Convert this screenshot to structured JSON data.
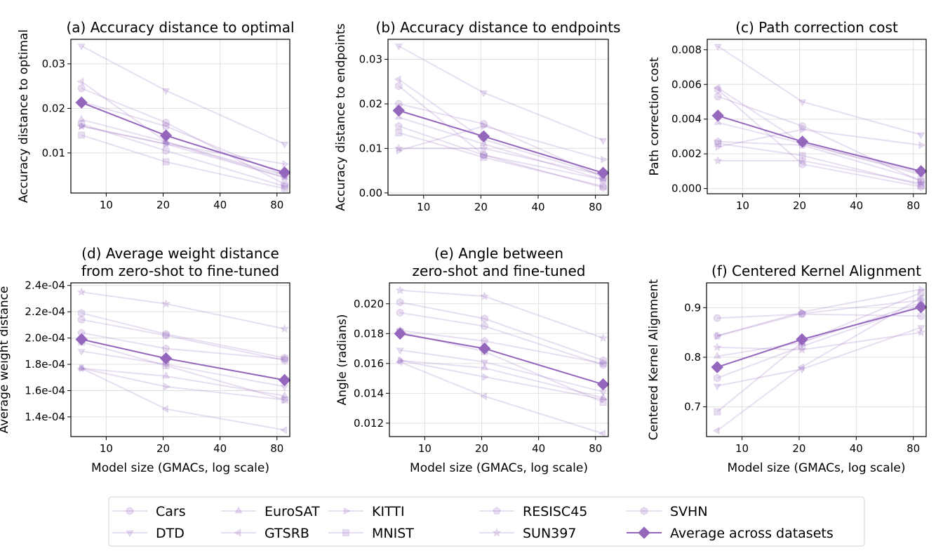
{
  "colors": {
    "series": "#9467bd",
    "grid": "#e0e0e0"
  },
  "legend": {
    "placement": "bottom-center",
    "entries": [
      {
        "name": "Cars",
        "marker": "circle"
      },
      {
        "name": "DTD",
        "marker": "triangle-down"
      },
      {
        "name": "EuroSAT",
        "marker": "triangle-up"
      },
      {
        "name": "GTSRB",
        "marker": "triangle-left"
      },
      {
        "name": "KITTI",
        "marker": "triangle-right"
      },
      {
        "name": "MNIST",
        "marker": "square"
      },
      {
        "name": "RESISC45",
        "marker": "pentagon"
      },
      {
        "name": "SUN397",
        "marker": "star"
      },
      {
        "name": "SVHN",
        "marker": "hexagon"
      },
      {
        "name": "Average across datasets",
        "marker": "diamond"
      }
    ]
  },
  "chart_data": [
    {
      "type": "line",
      "title": [
        "(a) Accuracy distance to optimal"
      ],
      "xlabel": "",
      "ylabel": "Accuracy distance to optimal",
      "xscale": "log",
      "x": [
        7.4,
        20.7,
        87.8
      ],
      "xlim": [
        6.5,
        93.5
      ],
      "xticks": [
        {
          "v": 10,
          "label": "10"
        },
        {
          "v": 20,
          "label": "20"
        },
        {
          "v": 40,
          "label": "40"
        },
        {
          "v": 80,
          "label": "80"
        }
      ],
      "ylim": [
        0.001,
        0.0355
      ],
      "grid": true,
      "yticks": [
        {
          "v": 0.01,
          "label": "0.01"
        },
        {
          "v": 0.02,
          "label": "0.02"
        },
        {
          "v": 0.03,
          "label": "0.03"
        }
      ],
      "series": [
        {
          "name": "Cars",
          "values": [
            0.0245,
            0.0168,
            0.003
          ]
        },
        {
          "name": "DTD",
          "values": [
            0.034,
            0.024,
            0.012
          ]
        },
        {
          "name": "EuroSAT",
          "values": [
            0.0175,
            0.0125,
            0.0045
          ]
        },
        {
          "name": "GTSRB",
          "values": [
            0.026,
            0.0125,
            0.005
          ]
        },
        {
          "name": "KITTI",
          "values": [
            0.016,
            0.012,
            0.0075
          ]
        },
        {
          "name": "MNIST",
          "values": [
            0.014,
            0.008,
            0.002
          ]
        },
        {
          "name": "RESISC45",
          "values": [
            0.0215,
            0.016,
            0.005
          ]
        },
        {
          "name": "SUN397",
          "values": [
            0.016,
            0.012,
            0.0045
          ]
        },
        {
          "name": "SVHN",
          "values": [
            0.0165,
            0.0105,
            0.0025
          ]
        },
        {
          "name": "Average across datasets",
          "values": [
            0.0213,
            0.0139,
            0.0056
          ]
        }
      ]
    },
    {
      "type": "line",
      "title": [
        "(b) Accuracy distance to endpoints"
      ],
      "xlabel": "",
      "ylabel": "Accuracy distance to endpoints",
      "xscale": "log",
      "x": [
        7.4,
        20.7,
        87.8
      ],
      "xlim": [
        6.5,
        93.5
      ],
      "xticks": [
        {
          "v": 10,
          "label": "10"
        },
        {
          "v": 20,
          "label": "20"
        },
        {
          "v": 40,
          "label": "40"
        },
        {
          "v": 80,
          "label": "80"
        }
      ],
      "ylim": [
        -0.0005,
        0.0345
      ],
      "grid": true,
      "yticks": [
        {
          "v": 0,
          "label": "0.00"
        },
        {
          "v": 0.01,
          "label": "0.01"
        },
        {
          "v": 0.02,
          "label": "0.02"
        },
        {
          "v": 0.03,
          "label": "0.03"
        }
      ],
      "series": [
        {
          "name": "Cars",
          "values": [
            0.02,
            0.0155,
            0.0035
          ]
        },
        {
          "name": "DTD",
          "values": [
            0.033,
            0.0225,
            0.0118
          ]
        },
        {
          "name": "EuroSAT",
          "values": [
            0.017,
            0.011,
            0.003
          ]
        },
        {
          "name": "GTSRB",
          "values": [
            0.0255,
            0.012,
            0.004
          ]
        },
        {
          "name": "KITTI",
          "values": [
            0.0095,
            0.015,
            0.0075
          ]
        },
        {
          "name": "MNIST",
          "values": [
            0.0135,
            0.008,
            0.0015
          ]
        },
        {
          "name": "RESISC45",
          "values": [
            0.015,
            0.0085,
            0.003
          ]
        },
        {
          "name": "SUN397",
          "values": [
            0.01,
            0.01,
            0.004
          ]
        },
        {
          "name": "SVHN",
          "values": [
            0.024,
            0.0085,
            0.0012
          ]
        },
        {
          "name": "Average across datasets",
          "values": [
            0.0185,
            0.0127,
            0.0045
          ]
        }
      ]
    },
    {
      "type": "line",
      "title": [
        "(c) Path correction cost"
      ],
      "xlabel": "",
      "ylabel": "Path correction cost",
      "xscale": "log",
      "x": [
        7.4,
        20.7,
        87.8
      ],
      "xlim": [
        6.5,
        93.5
      ],
      "xticks": [
        {
          "v": 10,
          "label": "10"
        },
        {
          "v": 20,
          "label": "20"
        },
        {
          "v": 40,
          "label": "40"
        },
        {
          "v": 80,
          "label": "80"
        }
      ],
      "ylim": [
        -0.0003,
        0.0086
      ],
      "grid": true,
      "yticks": [
        {
          "v": 0,
          "label": "0.000"
        },
        {
          "v": 0.002,
          "label": "0.002"
        },
        {
          "v": 0.004,
          "label": "0.004"
        },
        {
          "v": 0.006,
          "label": "0.006"
        },
        {
          "v": 0.008,
          "label": "0.008"
        }
      ],
      "series": [
        {
          "name": "Cars",
          "values": [
            0.0053,
            0.0036,
            0.0004
          ]
        },
        {
          "name": "DTD",
          "values": [
            0.0082,
            0.005,
            0.0031
          ]
        },
        {
          "name": "EuroSAT",
          "values": [
            0.0038,
            0.0026,
            0.0008
          ]
        },
        {
          "name": "GTSRB",
          "values": [
            0.0058,
            0.0026,
            0.0009
          ]
        },
        {
          "name": "KITTI",
          "values": [
            0.0024,
            0.0034,
            0.0025
          ]
        },
        {
          "name": "MNIST",
          "values": [
            0.0026,
            0.0019,
            0.0002
          ]
        },
        {
          "name": "RESISC45",
          "values": [
            0.0027,
            0.0025,
            0.0005
          ]
        },
        {
          "name": "SUN397",
          "values": [
            0.0016,
            0.0016,
            0.0003
          ]
        },
        {
          "name": "SVHN",
          "values": [
            0.0057,
            0.0014,
            0.0001
          ]
        },
        {
          "name": "Average across datasets",
          "values": [
            0.0042,
            0.0027,
            0.001
          ]
        }
      ]
    },
    {
      "type": "line",
      "title": [
        "(d) Average weight distance",
        "from zero-shot to fine-tuned"
      ],
      "xlabel": "Model size (GMACs, log scale)",
      "ylabel": "Average weight distance",
      "xscale": "log",
      "x": [
        7.4,
        20.7,
        87.8
      ],
      "xlim": [
        6.5,
        93.5
      ],
      "xticks": [
        {
          "v": 10,
          "label": "10"
        },
        {
          "v": 20,
          "label": "20"
        },
        {
          "v": 40,
          "label": "40"
        },
        {
          "v": 80,
          "label": "80"
        }
      ],
      "ylim": [
        0.000125,
        0.000242
      ],
      "grid": true,
      "yticks": [
        {
          "v": 0.00014,
          "label": "1.4e-04"
        },
        {
          "v": 0.00016,
          "label": "1.6e-04"
        },
        {
          "v": 0.00018,
          "label": "1.8e-04"
        },
        {
          "v": 0.0002,
          "label": "2.0e-04"
        },
        {
          "v": 0.00022,
          "label": "2.2e-04"
        },
        {
          "v": 0.00024,
          "label": "2.4e-04"
        }
      ],
      "series": [
        {
          "name": "Cars",
          "values": [
            0.000214,
            0.000202,
            0.000183
          ]
        },
        {
          "name": "DTD",
          "values": [
            0.00019,
            0.00018,
            0.000163
          ]
        },
        {
          "name": "EuroSAT",
          "values": [
            0.000177,
            0.000171,
            0.000156
          ]
        },
        {
          "name": "GTSRB",
          "values": [
            0.000177,
            0.000146,
            0.00013
          ]
        },
        {
          "name": "KITTI",
          "values": [
            0.000177,
            0.000163,
            0.000153
          ]
        },
        {
          "name": "MNIST",
          "values": [
            0.000197,
            0.000179,
            0.000153
          ]
        },
        {
          "name": "RESISC45",
          "values": [
            0.000204,
            0.000192,
            0.000184
          ]
        },
        {
          "name": "SUN397",
          "values": [
            0.000235,
            0.000226,
            0.000207
          ]
        },
        {
          "name": "SVHN",
          "values": [
            0.000219,
            0.000203,
            0.000185
          ]
        },
        {
          "name": "Average across datasets",
          "values": [
            0.000199,
            0.0001845,
            0.000168
          ]
        }
      ]
    },
    {
      "type": "line",
      "title": [
        "(e) Angle between",
        "zero-shot and fine-tuned"
      ],
      "xlabel": "Model size (GMACs, log scale)",
      "ylabel": "Angle (radians)",
      "xscale": "log",
      "x": [
        7.4,
        20.7,
        87.8
      ],
      "xlim": [
        6.5,
        93.5
      ],
      "xticks": [
        {
          "v": 10,
          "label": "10"
        },
        {
          "v": 20,
          "label": "20"
        },
        {
          "v": 40,
          "label": "40"
        },
        {
          "v": 80,
          "label": "80"
        }
      ],
      "ylim": [
        0.0111,
        0.0214
      ],
      "grid": true,
      "yticks": [
        {
          "v": 0.012,
          "label": "0.012"
        },
        {
          "v": 0.014,
          "label": "0.014"
        },
        {
          "v": 0.016,
          "label": "0.016"
        },
        {
          "v": 0.018,
          "label": "0.018"
        },
        {
          "v": 0.02,
          "label": "0.020"
        }
      ],
      "series": [
        {
          "name": "Cars",
          "values": [
            0.0194,
            0.0185,
            0.0159
          ]
        },
        {
          "name": "DTD",
          "values": [
            0.0169,
            0.0161,
            0.0141
          ]
        },
        {
          "name": "EuroSAT",
          "values": [
            0.0162,
            0.0157,
            0.0137
          ]
        },
        {
          "name": "GTSRB",
          "values": [
            0.0161,
            0.0138,
            0.0113
          ]
        },
        {
          "name": "KITTI",
          "values": [
            0.0162,
            0.0151,
            0.0136
          ]
        },
        {
          "name": "MNIST",
          "values": [
            0.0181,
            0.0168,
            0.0134
          ]
        },
        {
          "name": "RESISC45",
          "values": [
            0.0182,
            0.0175,
            0.016
          ]
        },
        {
          "name": "SUN397",
          "values": [
            0.0209,
            0.0205,
            0.0177
          ]
        },
        {
          "name": "SVHN",
          "values": [
            0.0201,
            0.019,
            0.0162
          ]
        },
        {
          "name": "Average across datasets",
          "values": [
            0.018,
            0.017,
            0.0146
          ]
        }
      ]
    },
    {
      "type": "line",
      "title": [
        "(f) Centered Kernel Alignment"
      ],
      "xlabel": "Model size (GMACs, log scale)",
      "ylabel": "Centered Kernel Alignment",
      "xscale": "log",
      "x": [
        7.4,
        20.7,
        87.8
      ],
      "xlim": [
        6.5,
        93.5
      ],
      "xticks": [
        {
          "v": 10,
          "label": "10"
        },
        {
          "v": 20,
          "label": "20"
        },
        {
          "v": 40,
          "label": "40"
        },
        {
          "v": 80,
          "label": "80"
        }
      ],
      "ylim": [
        0.64,
        0.95
      ],
      "grid": true,
      "yticks": [
        {
          "v": 0.7,
          "label": "0.7"
        },
        {
          "v": 0.8,
          "label": "0.8"
        },
        {
          "v": 0.9,
          "label": "0.9"
        }
      ],
      "series": [
        {
          "name": "Cars",
          "values": [
            0.879,
            0.887,
            0.883
          ]
        },
        {
          "name": "DTD",
          "values": [
            0.742,
            0.776,
            0.86
          ]
        },
        {
          "name": "EuroSAT",
          "values": [
            0.802,
            0.83,
            0.91
          ]
        },
        {
          "name": "GTSRB",
          "values": [
            0.652,
            0.78,
            0.92
          ]
        },
        {
          "name": "KITTI",
          "values": [
            0.843,
            0.891,
            0.937
          ]
        },
        {
          "name": "MNIST",
          "values": [
            0.69,
            0.83,
            0.93
          ]
        },
        {
          "name": "RESISC45",
          "values": [
            0.843,
            0.888,
            0.915
          ]
        },
        {
          "name": "SUN397",
          "values": [
            0.82,
            0.815,
            0.85
          ]
        },
        {
          "name": "SVHN",
          "values": [
            0.758,
            0.822,
            0.905
          ]
        },
        {
          "name": "Average across datasets",
          "values": [
            0.78,
            0.836,
            0.901
          ]
        }
      ]
    }
  ]
}
